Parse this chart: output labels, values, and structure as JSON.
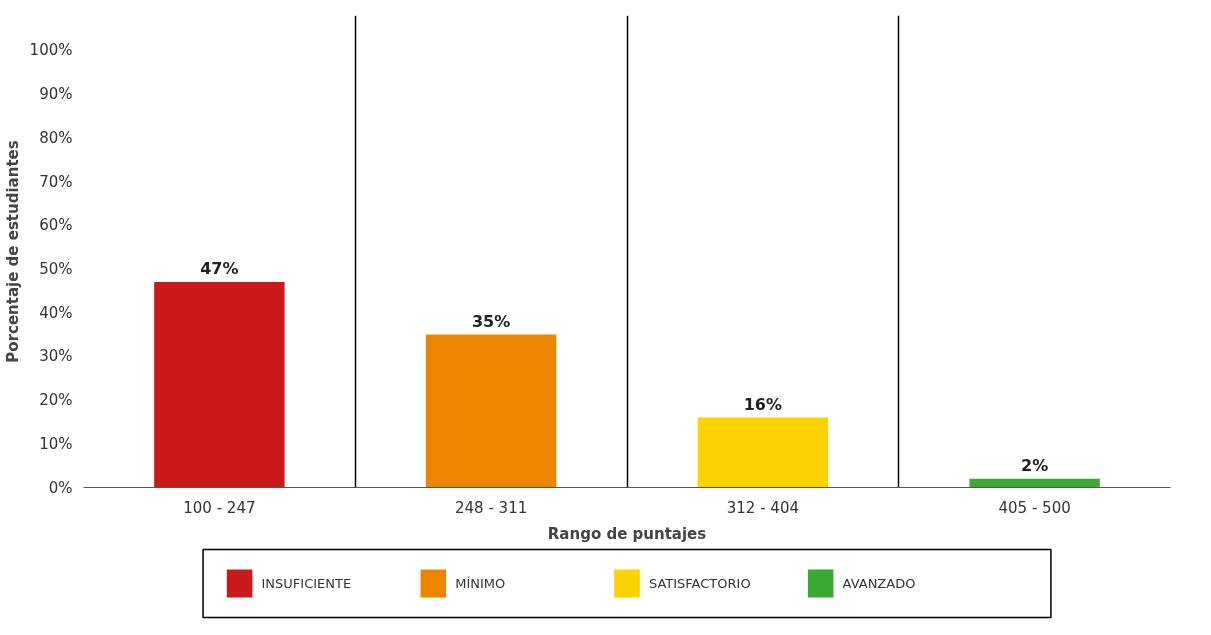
{
  "chart_data": {
    "type": "bar",
    "xlabel": "Rango de puntajes",
    "ylabel": "Porcentaje de estudiantes",
    "categories": [
      "100 - 247",
      "248 - 311",
      "312 - 404",
      "405 - 500"
    ],
    "series": [
      {
        "name": "INSUFICIENTE",
        "color": "#cc1a1c",
        "values": [
          47,
          null,
          null,
          null
        ],
        "value_labels": [
          "47%",
          null,
          null,
          null
        ]
      },
      {
        "name": "MÍNIMO",
        "color": "#ee8500",
        "values": [
          null,
          35,
          null,
          null
        ],
        "value_labels": [
          null,
          "35%",
          null,
          null
        ]
      },
      {
        "name": "SATISFACTORIO",
        "color": "#fcd200",
        "values": [
          null,
          null,
          16,
          null
        ],
        "value_labels": [
          null,
          null,
          "16%",
          null
        ]
      },
      {
        "name": "AVANZADO",
        "color": "#3aaa35",
        "values": [
          null,
          null,
          null,
          2
        ],
        "value_labels": [
          null,
          null,
          null,
          "2%"
        ]
      }
    ],
    "ylim": [
      0,
      108
    ],
    "yticks": [
      {
        "value": 0,
        "label": "0%"
      },
      {
        "value": 10,
        "label": "10%"
      },
      {
        "value": 20,
        "label": "20%"
      },
      {
        "value": 30,
        "label": "30%"
      },
      {
        "value": 40,
        "label": "40%"
      },
      {
        "value": 50,
        "label": "50%"
      },
      {
        "value": 60,
        "label": "60%"
      },
      {
        "value": 70,
        "label": "70%"
      },
      {
        "value": 80,
        "label": "80%"
      },
      {
        "value": 90,
        "label": "90%"
      },
      {
        "value": 100,
        "label": "100%"
      }
    ],
    "grid": "x",
    "legend": "bottom"
  }
}
